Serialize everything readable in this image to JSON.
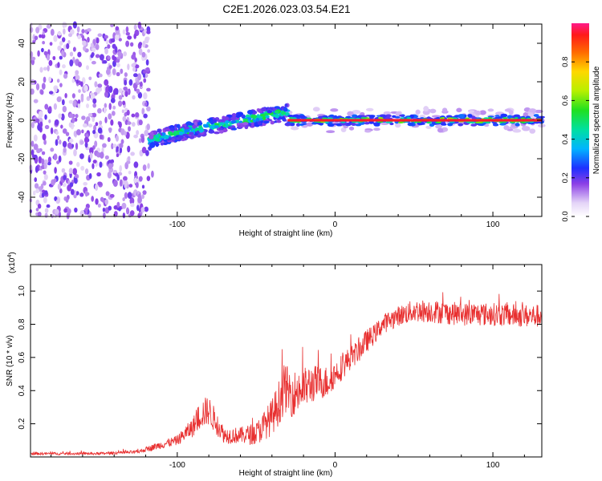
{
  "title": "C2E1.2026.023.03.54.E21",
  "colors": {
    "snr_line": "#e83030",
    "spec_low": "#ddc8f5",
    "spec_mid": "#7a24e0",
    "spec_high": "#ff1e1e"
  },
  "chart_data": [
    {
      "type": "heatmap",
      "name": "spectrogram",
      "xlabel": "Height of straight line (km)",
      "ylabel": "Frequency (Hz)",
      "xlim": [
        -193,
        131
      ],
      "ylim": [
        -50,
        50
      ],
      "xticks": [
        -100,
        0,
        100
      ],
      "xtick_labels": [
        "-100",
        "0",
        "100"
      ],
      "yticks": [
        -40,
        -20,
        0,
        20,
        40
      ],
      "ytick_labels": [
        "-40",
        "-20",
        "0",
        "20",
        "40"
      ],
      "colorbar": {
        "label": "Normalized spectral amplitude",
        "range": [
          0,
          1
        ],
        "ticks": [
          0,
          0.2,
          0.4,
          0.6,
          0.8
        ],
        "tick_labels": [
          "0.0",
          "0.2",
          "0.4",
          "0.6",
          "0.8"
        ]
      },
      "features": [
        {
          "region": "noise",
          "x_range": [
            -193,
            -118
          ],
          "freq_range": [
            -50,
            50
          ],
          "amplitude": 0.15
        },
        {
          "region": "rising track",
          "x_range": [
            -118,
            -30
          ],
          "freq_start": -11,
          "freq_end": 4,
          "amplitude": 0.35
        },
        {
          "region": "steady carrier",
          "x_range": [
            -30,
            131
          ],
          "freq": 0,
          "amplitude": 0.95
        }
      ]
    },
    {
      "type": "line",
      "name": "snr",
      "xlabel": "Height of straight line (km)",
      "ylabel": "SNR (10 * v/v)",
      "y_multiplier": "(x10",
      "y_multiplier_exp": "4",
      "y_multiplier_close": ")",
      "xlim": [
        -193,
        131
      ],
      "ylim": [
        0,
        1.16
      ],
      "xticks": [
        -100,
        0,
        100
      ],
      "xtick_labels": [
        "-100",
        "0",
        "100"
      ],
      "yticks": [
        0.2,
        0.4,
        0.6,
        0.8,
        1.0
      ],
      "ytick_labels": [
        "0.2",
        "0.4",
        "0.6",
        "0.8",
        "1.0"
      ],
      "series": [
        {
          "name": "SNR",
          "x": [
            -193,
            -150,
            -125,
            -115,
            -100,
            -90,
            -85,
            -80,
            -75,
            -70,
            -60,
            -50,
            -40,
            -35,
            -32,
            -28,
            -22,
            -15,
            -10,
            -5,
            0,
            5,
            10,
            15,
            20,
            25,
            30,
            40,
            50,
            60,
            80,
            100,
            120,
            131
          ],
          "y": [
            0.02,
            0.02,
            0.03,
            0.06,
            0.1,
            0.18,
            0.26,
            0.28,
            0.2,
            0.13,
            0.13,
            0.14,
            0.24,
            0.34,
            0.42,
            0.38,
            0.4,
            0.44,
            0.45,
            0.45,
            0.5,
            0.55,
            0.6,
            0.64,
            0.7,
            0.74,
            0.8,
            0.85,
            0.88,
            0.88,
            0.86,
            0.86,
            0.85,
            0.85
          ],
          "noise": [
            0.008,
            0.008,
            0.01,
            0.02,
            0.03,
            0.06,
            0.09,
            0.09,
            0.07,
            0.05,
            0.05,
            0.07,
            0.11,
            0.14,
            0.15,
            0.14,
            0.13,
            0.12,
            0.1,
            0.1,
            0.08,
            0.08,
            0.07,
            0.07,
            0.07,
            0.06,
            0.06,
            0.06,
            0.07,
            0.07,
            0.07,
            0.07,
            0.07,
            0.07
          ]
        }
      ]
    }
  ]
}
